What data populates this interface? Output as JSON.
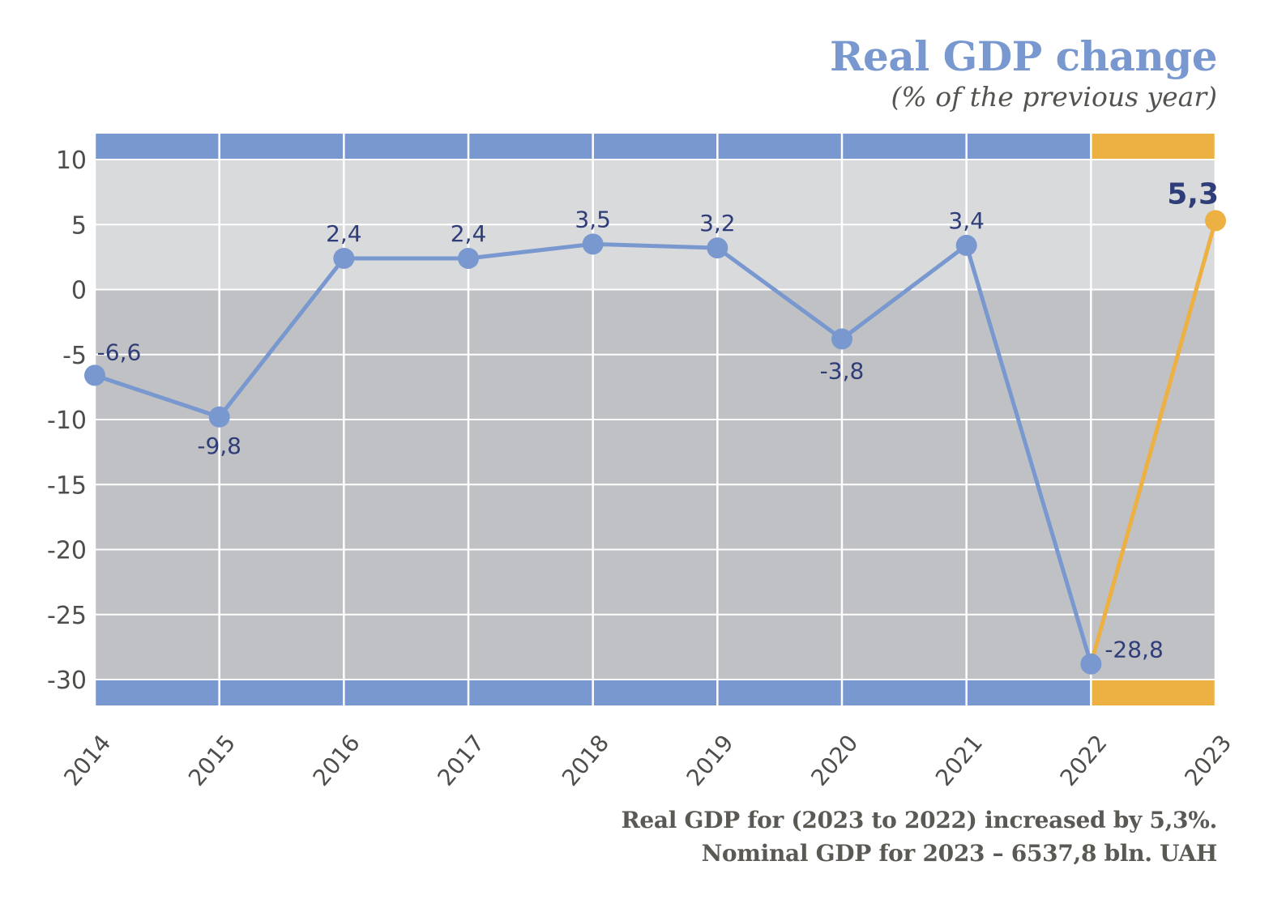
{
  "header": {
    "title": "Real GDP change",
    "subtitle": "(% of the previous year)"
  },
  "footer": {
    "line1": "Real GDP for (2023 to 2022) increased by 5,3%.",
    "line2": "Nominal GDP for 2023 – 6537,8 bln. UAH"
  },
  "colors": {
    "series_blue": "#7898cf",
    "highlight_orange": "#ecb043",
    "label_navy": "#2f3d78",
    "plot_bg_positive": "#d9dadc",
    "plot_bg_negative": "#c0c1c4",
    "grid": "#ffffff",
    "tick_text": "#4f4d4a"
  },
  "chart_data": {
    "type": "line",
    "title": "Real GDP change",
    "subtitle": "(% of the previous year)",
    "xlabel": "",
    "ylabel": "",
    "categories": [
      "2014",
      "2015",
      "2016",
      "2017",
      "2018",
      "2019",
      "2020",
      "2021",
      "2022",
      "2023"
    ],
    "series": [
      {
        "name": "Real GDP change",
        "values": [
          -6.6,
          -9.8,
          2.4,
          2.4,
          3.5,
          3.2,
          -3.8,
          3.4,
          -28.8,
          5.3
        ],
        "labels": [
          "-6,6",
          "-9,8",
          "2,4",
          "2,4",
          "3,5",
          "3,2",
          "-3,8",
          "3,4",
          "-28,8",
          "5,3"
        ],
        "highlight_last": true
      }
    ],
    "ylim": [
      -30,
      10
    ],
    "yticks": [
      10,
      5,
      0,
      -5,
      -10,
      -15,
      -20,
      -25,
      -30
    ],
    "ytick_labels": [
      "10",
      "5",
      "0",
      "-5",
      "-10",
      "-15",
      "-20",
      "-25",
      "-30"
    ],
    "grid": true,
    "legend": "none",
    "highlight_segment": [
      "2022",
      "2023"
    ]
  }
}
